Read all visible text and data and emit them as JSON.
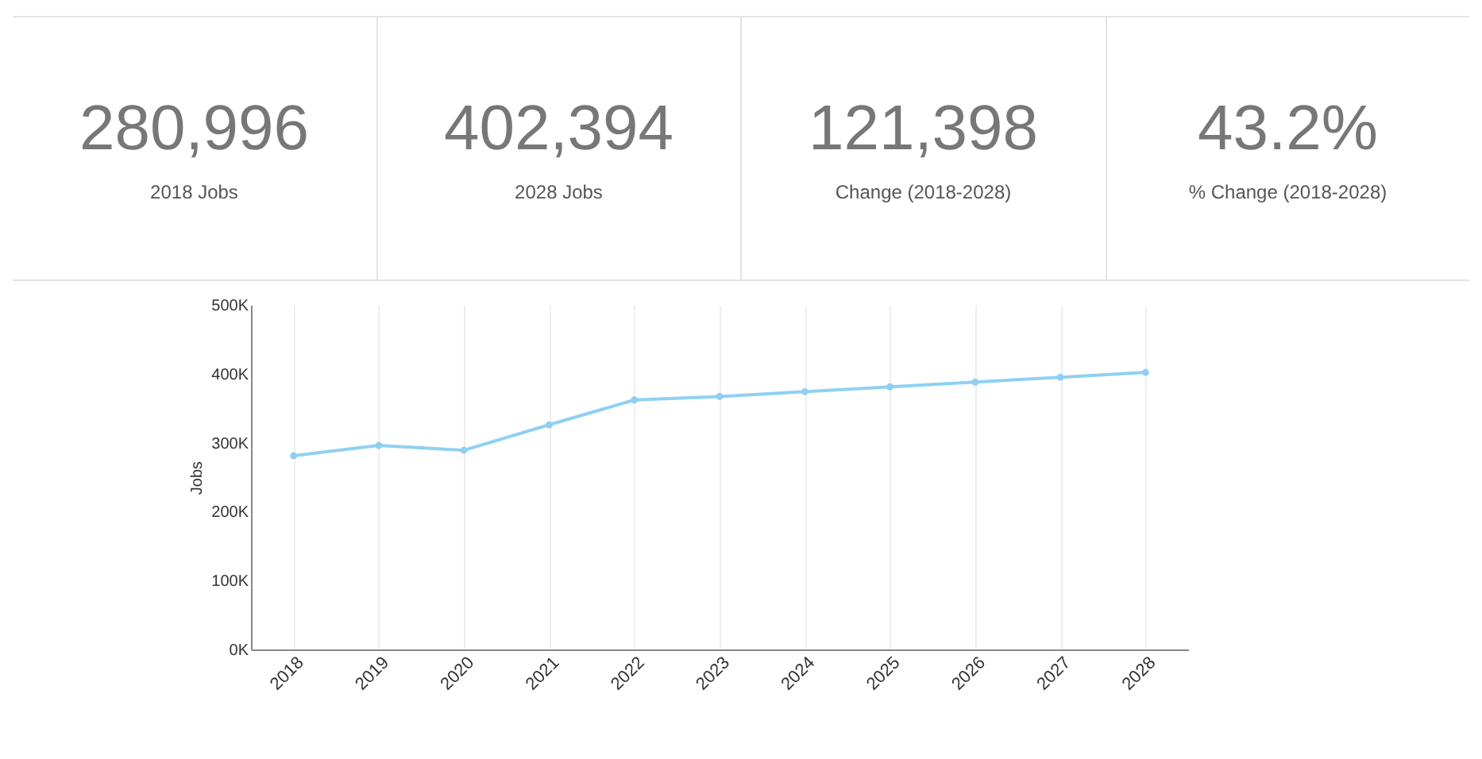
{
  "chart_data": [
    {
      "type": "other",
      "annotations": [
        "280,996",
        "2018 Jobs",
        "402,394",
        "2028 Jobs",
        "121,398",
        "Change (2018-2028)",
        "43.2%",
        "% Change (2018-2028)"
      ]
    },
    {
      "type": "line",
      "ylabel": "Jobs",
      "categories": [
        "2018",
        "2019",
        "2020",
        "2021",
        "2022",
        "2023",
        "2024",
        "2025",
        "2026",
        "2027",
        "2028"
      ],
      "series": [
        {
          "color": "#8fd0f2",
          "values": [
            281000,
            296000,
            289000,
            326000,
            362000,
            367000,
            374000,
            381000,
            388000,
            395000,
            402000
          ]
        }
      ],
      "ylim": [
        0,
        500000
      ],
      "yticks": [
        {
          "value": 0,
          "label": "0K"
        },
        {
          "value": 100000,
          "label": "100K"
        },
        {
          "value": 200000,
          "label": "200K"
        },
        {
          "value": 300000,
          "label": "300K"
        },
        {
          "value": 400000,
          "label": "400K"
        },
        {
          "value": 500000,
          "label": "500K"
        }
      ],
      "grid": "x",
      "marker": "circle",
      "line_style": "solid"
    }
  ]
}
